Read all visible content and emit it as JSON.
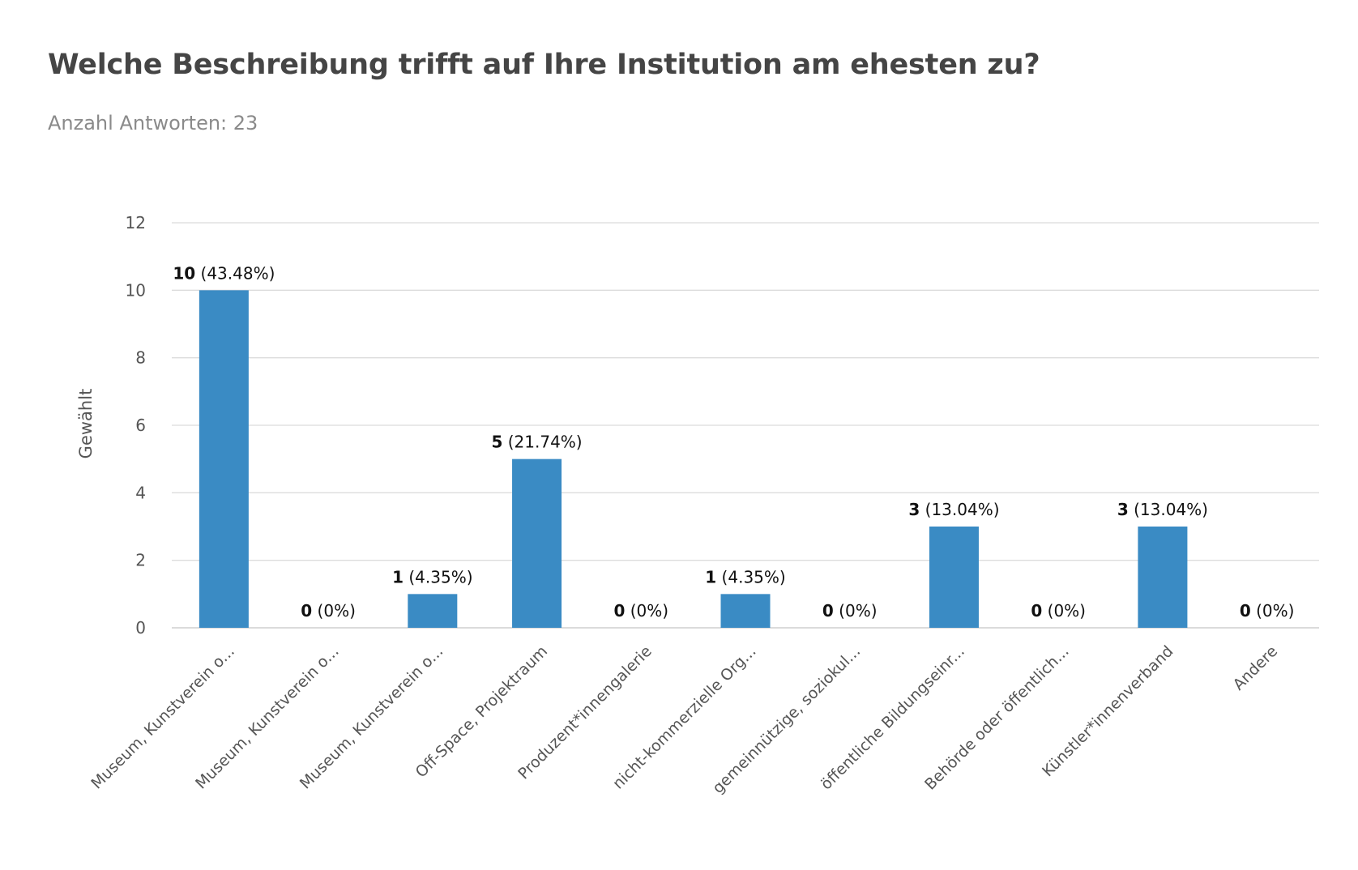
{
  "title": "Welche Beschreibung trifft auf Ihre Institution am ehesten zu?",
  "subtitle": "Anzahl Antworten: 23",
  "colors": {
    "bar": "#3a8bc4",
    "grid": "#dcdcdc",
    "title": "#454545",
    "subtitle": "#8a8a8a"
  },
  "chart_data": {
    "type": "bar",
    "title": "Welche Beschreibung trifft auf Ihre Institution am ehesten zu?",
    "subtitle": "Anzahl Antworten: 23",
    "xlabel": "",
    "ylabel": "Gewählt",
    "ylim": [
      0,
      12
    ],
    "yticks": [
      0,
      2,
      4,
      6,
      8,
      10,
      12
    ],
    "grid": true,
    "legend": "none",
    "categories": [
      "Museum, Kunstverein o...",
      "Museum, Kunstverein o...",
      "Museum, Kunstverein o...",
      "Off-Space, Projektraum",
      "Produzent*innengalerie",
      "nicht-kommerzielle Org...",
      "gemeinnützige, soziokul...",
      "öffentliche Bildungseinr...",
      "Behörde oder öffentlich...",
      "Künstler*innenverband",
      "Andere"
    ],
    "values": [
      10,
      0,
      1,
      5,
      0,
      1,
      0,
      3,
      0,
      3,
      0
    ],
    "percent_labels": [
      "(43.48%)",
      "(0%)",
      "(4.35%)",
      "(21.74%)",
      "(0%)",
      "(4.35%)",
      "(0%)",
      "(13.04%)",
      "(0%)",
      "(13.04%)",
      "(0%)"
    ]
  }
}
